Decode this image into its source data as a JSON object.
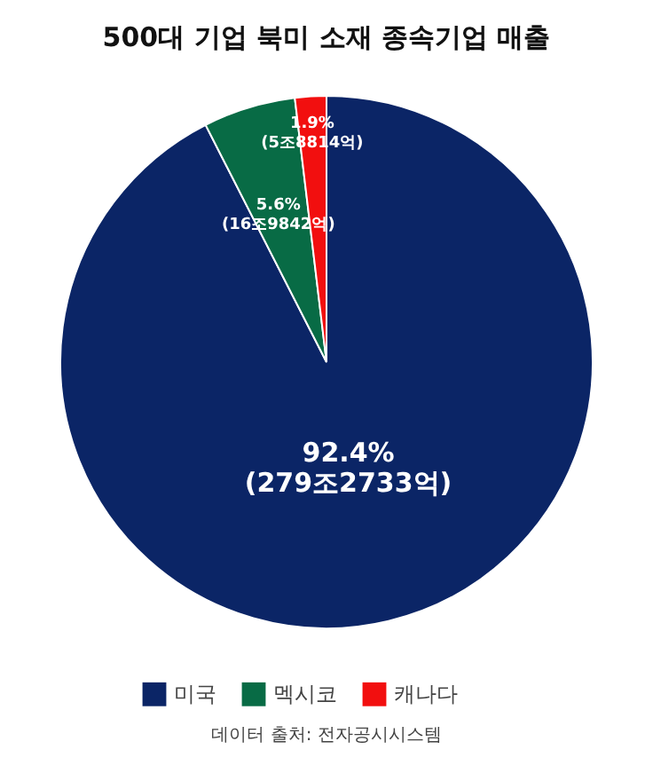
{
  "chart_data": {
    "type": "pie",
    "title": "500대 기업 북미 소재 종속기업 매출",
    "categories": [
      "미국",
      "멕시코",
      "캐나다"
    ],
    "values": [
      92.4,
      5.6,
      1.9
    ],
    "colors": [
      "#0b2566",
      "#086b45",
      "#f20f0f"
    ],
    "value_labels": [
      "92.4%\n(279조2733억)",
      "5.6%\n(16조9842억)",
      "1.9%\n(5조8814억)"
    ],
    "legend": "bottom",
    "annotations": [
      "데이터 출처: 전자공시시스템"
    ]
  }
}
